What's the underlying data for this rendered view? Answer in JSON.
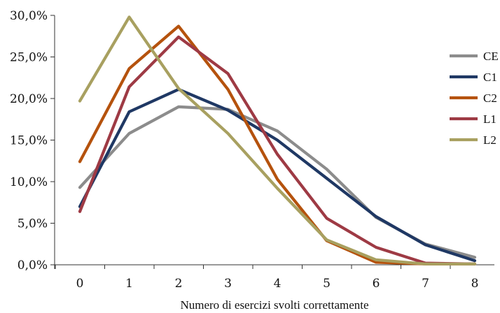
{
  "chart_data": {
    "type": "line",
    "title": "",
    "xlabel": "Numero di esercizi svolti correttamente",
    "ylabel": "",
    "x": [
      "0",
      "1",
      "2",
      "3",
      "4",
      "5",
      "6",
      "7",
      "8"
    ],
    "y_ticks": [
      "0,0%",
      "5,0%",
      "10,0%",
      "15,0%",
      "20,0%",
      "25,0%",
      "30,0%"
    ],
    "ylim": [
      0,
      30
    ],
    "grid": false,
    "legend_position": "right",
    "series": [
      {
        "name": "CE",
        "color": "#8c8c8c",
        "values": [
          9.3,
          15.8,
          19.0,
          18.7,
          16.1,
          11.5,
          5.7,
          2.5,
          0.9
        ]
      },
      {
        "name": "C1",
        "color": "#1f3864",
        "values": [
          7.0,
          18.4,
          21.1,
          18.6,
          15.0,
          10.4,
          5.8,
          2.4,
          0.5
        ]
      },
      {
        "name": "C2",
        "color": "#b5520d",
        "values": [
          12.4,
          23.6,
          28.7,
          21.1,
          10.3,
          2.9,
          0.3,
          0.1,
          0.1
        ]
      },
      {
        "name": "L1",
        "color": "#9e3a44",
        "values": [
          6.4,
          21.4,
          27.4,
          23.0,
          13.3,
          5.6,
          2.1,
          0.2,
          0.1
        ]
      },
      {
        "name": "L2",
        "color": "#a8a060",
        "values": [
          19.7,
          29.8,
          21.2,
          15.8,
          9.2,
          3.0,
          0.6,
          0.1,
          0.1
        ]
      }
    ]
  }
}
